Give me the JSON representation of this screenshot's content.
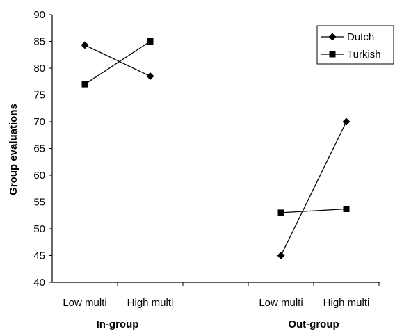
{
  "chart_data": {
    "type": "line",
    "title": "",
    "ylabel": "Group evaluations",
    "ylim": [
      40,
      90
    ],
    "yticks": [
      40,
      45,
      50,
      55,
      60,
      65,
      70,
      75,
      80,
      85,
      90
    ],
    "grid": false,
    "legend_position": "top-right",
    "groups": [
      {
        "name": "In-group",
        "categories": [
          "Low multi",
          "High multi"
        ]
      },
      {
        "name": "Out-group",
        "categories": [
          "Low multi",
          "High multi"
        ]
      }
    ],
    "series": [
      {
        "name": "Dutch",
        "marker": "diamond",
        "values": {
          "In-group": [
            84.3,
            78.5
          ],
          "Out-group": [
            45.0,
            70.0
          ]
        }
      },
      {
        "name": "Turkish",
        "marker": "square",
        "values": {
          "In-group": [
            77.0,
            85.0
          ],
          "Out-group": [
            53.0,
            53.7
          ]
        }
      }
    ]
  }
}
